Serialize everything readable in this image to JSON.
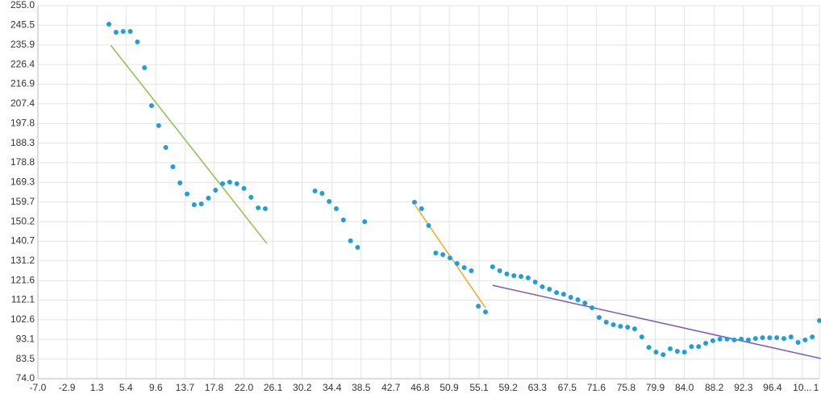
{
  "chart_data": {
    "type": "scatter",
    "xlim": [
      -7.0,
      103.0
    ],
    "xticks": [
      {
        "value": -7.0,
        "label": "-7.0"
      },
      -2.9,
      1.3,
      5.4,
      9.6,
      13.7,
      17.8,
      {
        "value": 22.0,
        "label": "22.0"
      },
      26.1,
      30.2,
      34.4,
      38.5,
      42.7,
      46.8,
      50.9,
      55.1,
      59.2,
      63.3,
      67.5,
      71.6,
      75.8,
      79.9,
      {
        "value": 84.0,
        "label": "84.0"
      },
      88.2,
      92.3,
      96.4,
      {
        "value": 100.6,
        "label": "10..."
      },
      {
        "value": 103.0,
        "label": "1"
      }
    ],
    "ylim": [
      74.0,
      255.0
    ],
    "yticks": [
      {
        "value": 74.0,
        "label": "74.0"
      },
      83.5,
      93.1,
      102.6,
      112.1,
      121.6,
      131.2,
      140.7,
      150.2,
      159.7,
      169.3,
      178.8,
      188.3,
      197.8,
      207.4,
      216.9,
      226.4,
      235.9,
      245.5,
      {
        "value": 255.0,
        "label": "255.0"
      }
    ],
    "grid": true,
    "series": [
      {
        "type": "scatter",
        "color": "#1e9fd8",
        "x": [
          3,
          4,
          5,
          6,
          7,
          8,
          9,
          10,
          11,
          12,
          13,
          14,
          15,
          16,
          17,
          18,
          19,
          20,
          21,
          22,
          23,
          24,
          25,
          32,
          33,
          34,
          35,
          36,
          37,
          38,
          39,
          46,
          47,
          48,
          49,
          50,
          51,
          52,
          53,
          54,
          55,
          56,
          57,
          58,
          59,
          60,
          61,
          62,
          63,
          64,
          65,
          66,
          67,
          68,
          69,
          70,
          71,
          72,
          73,
          74,
          75,
          76,
          77,
          78,
          79,
          80,
          81,
          82,
          83,
          84,
          85,
          86,
          87,
          88,
          89,
          90,
          91,
          92,
          93,
          94,
          95,
          96,
          97,
          98,
          99,
          100,
          101,
          102,
          103
        ],
        "values": [
          246.0,
          242.1,
          242.5,
          242.5,
          237.4,
          224.9,
          206.5,
          196.8,
          186.2,
          176.8,
          169.0,
          163.6,
          158.4,
          158.8,
          161.6,
          165.5,
          168.6,
          169.4,
          168.6,
          166.3,
          162.0,
          156.9,
          156.5,
          165.1,
          163.9,
          160.0,
          156.5,
          151.0,
          140.9,
          137.7,
          150.2,
          159.6,
          156.5,
          148.3,
          135.0,
          134.2,
          132.6,
          129.9,
          127.9,
          126.4,
          109.2,
          106.4,
          128.3,
          126.4,
          124.8,
          124.0,
          123.6,
          122.9,
          120.9,
          118.6,
          117.4,
          115.8,
          115.0,
          113.5,
          112.3,
          110.7,
          108.4,
          103.7,
          101.4,
          100.2,
          99.4,
          99.0,
          98.2,
          94.3,
          89.2,
          86.9,
          85.7,
          88.5,
          87.3,
          86.9,
          89.6,
          89.6,
          91.2,
          92.4,
          93.2,
          93.2,
          92.8,
          93.2,
          92.8,
          93.5,
          93.9,
          93.9,
          93.9,
          93.5,
          94.3,
          91.6,
          92.8,
          94.3,
          102.2
        ]
      },
      {
        "type": "line",
        "color": "#8bc34a",
        "x": [
          3.25,
          25.2
        ],
        "values": [
          235.8,
          139.7
        ]
      },
      {
        "type": "line",
        "color": "#f5a623",
        "x": [
          46.1,
          56.0
        ],
        "values": [
          158.1,
          108.4
        ]
      },
      {
        "type": "line",
        "color": "#7e57c2",
        "x": [
          57.0,
          103.2
        ],
        "values": [
          119.3,
          83.8
        ]
      }
    ]
  }
}
